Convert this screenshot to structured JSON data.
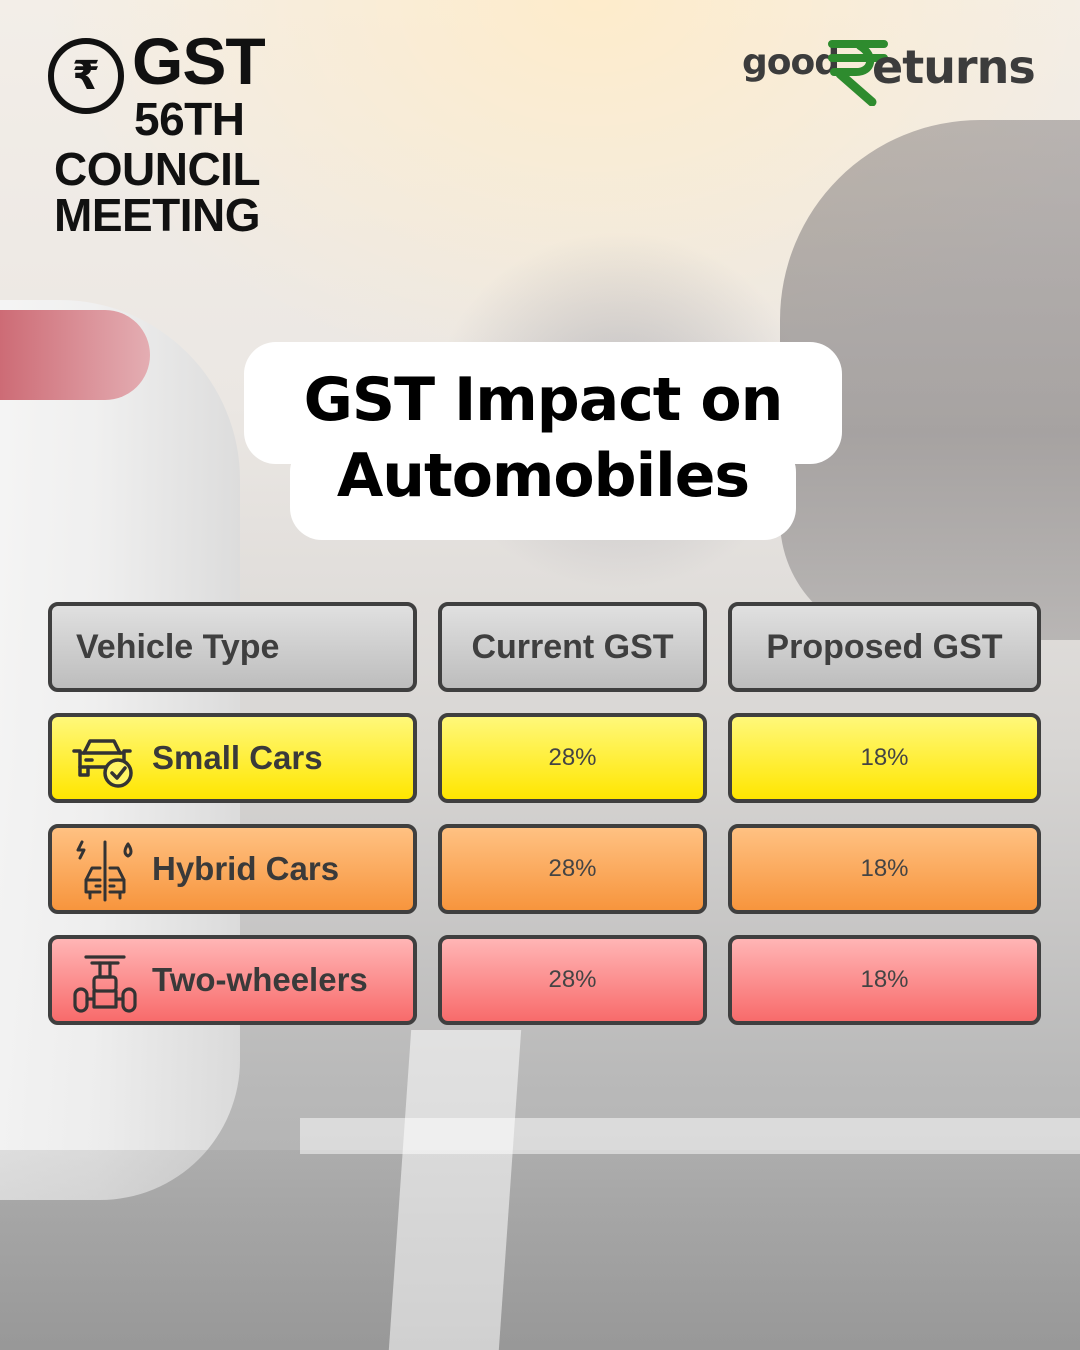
{
  "header": {
    "badge_symbol": "₹",
    "title_top": "GST",
    "title_line1": "56TH",
    "title_line2": "COUNCIL",
    "title_line3": "MEETING"
  },
  "logo": {
    "part1": "good",
    "symbol": "₹",
    "part2": "eturns",
    "accent_color": "#2e8b2e"
  },
  "headline": {
    "line1": "GST Impact on",
    "line2": "Automobiles"
  },
  "table": {
    "headers": [
      "Vehicle Type",
      "Current GST",
      "Proposed GST"
    ],
    "rows": [
      {
        "icon": "car-check-icon",
        "type": "Small Cars",
        "current": "28%",
        "proposed": "18%",
        "color": "#ffee00"
      },
      {
        "icon": "hybrid-car-icon",
        "type": "Hybrid Cars",
        "current": "28%",
        "proposed": "18%",
        "color": "#f8a04c"
      },
      {
        "icon": "scooter-icon",
        "type": "Two-wheelers",
        "current": "28%",
        "proposed": "18%",
        "color": "#f97c7c"
      }
    ]
  }
}
